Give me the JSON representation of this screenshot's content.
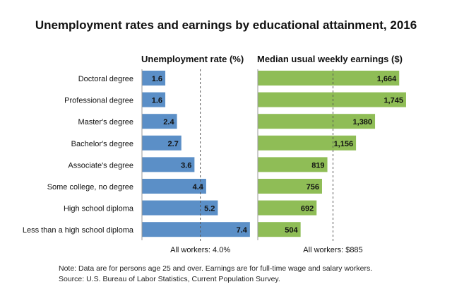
{
  "chart_data": [
    {
      "type": "bar",
      "orientation": "horizontal",
      "title": "Unemployment rates and earnings by educational attainment, 2016",
      "panel_title": "Unemployment rate (%)",
      "categories": [
        "Doctoral degree",
        "Professional degree",
        "Master's degree",
        "Bachelor's degree",
        "Associate's degree",
        "Some college, no degree",
        "High school diploma",
        "Less than a high school diploma"
      ],
      "values": [
        1.6,
        1.6,
        2.4,
        2.7,
        3.6,
        4.4,
        5.2,
        7.4
      ],
      "value_labels": [
        "1.6",
        "1.6",
        "2.4",
        "2.7",
        "3.6",
        "4.4",
        "5.2",
        "7.4"
      ],
      "reference_value": 4.0,
      "reference_label": "All workers: 4.0%",
      "xlim": [
        0,
        7.6
      ],
      "color": "#5b8fc7"
    },
    {
      "type": "bar",
      "orientation": "horizontal",
      "panel_title": "Median usual weekly earnings ($)",
      "categories": [
        "Doctoral degree",
        "Professional degree",
        "Master's degree",
        "Bachelor's degree",
        "Associate's degree",
        "Some college, no degree",
        "High school diploma",
        "Less than a high school diploma"
      ],
      "values": [
        1664,
        1745,
        1380,
        1156,
        819,
        756,
        692,
        504
      ],
      "value_labels": [
        "1,664",
        "1,745",
        "1,380",
        "1,156",
        "819",
        "756",
        "692",
        "504"
      ],
      "reference_value": 885,
      "reference_label": "All workers: $885",
      "xlim": [
        0,
        1820
      ],
      "color": "#8fbd56"
    }
  ],
  "notes": {
    "line1": "Note: Data are for persons age 25 and over. Earnings are for full-time wage and salary workers.",
    "line2": "Source: U.S. Bureau of Labor Statistics, Current Population Survey."
  }
}
